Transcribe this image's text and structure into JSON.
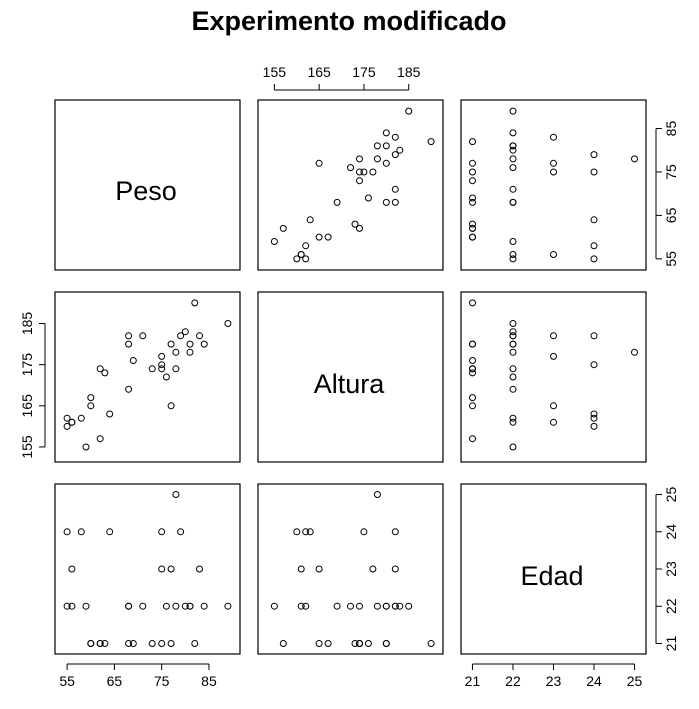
{
  "chart_data": {
    "type": "scatter",
    "subtype": "pairs",
    "title": "Experimento modificado",
    "variables": [
      "Peso",
      "Altura",
      "Edad"
    ],
    "axes": {
      "Peso": {
        "ticks": [
          55,
          65,
          75,
          85
        ],
        "range": [
          54,
          90
        ]
      },
      "Altura": {
        "ticks": [
          155,
          165,
          175,
          185
        ],
        "range": [
          153,
          191
        ]
      },
      "Edad": {
        "ticks": [
          21,
          22,
          23,
          24,
          25
        ],
        "range": [
          20.9,
          25.1
        ]
      }
    },
    "tick_labels": {
      "top_altura": [
        "155",
        "165",
        "175",
        "185"
      ],
      "right_peso": [
        "55",
        "65",
        "75",
        "85"
      ],
      "left_altura": [
        "155",
        "165",
        "175",
        "185"
      ],
      "right_edad": [
        "21",
        "22",
        "23",
        "24",
        "25"
      ],
      "bottom_peso": [
        "55",
        "65",
        "75",
        "85"
      ],
      "bottom_edad": [
        "21",
        "22",
        "23",
        "24",
        "25"
      ]
    },
    "observations": [
      {
        "Peso": 55,
        "Altura": 160,
        "Edad": 24
      },
      {
        "Peso": 55,
        "Altura": 162,
        "Edad": 22
      },
      {
        "Peso": 56,
        "Altura": 161,
        "Edad": 22
      },
      {
        "Peso": 56,
        "Altura": 161,
        "Edad": 23
      },
      {
        "Peso": 58,
        "Altura": 162,
        "Edad": 24
      },
      {
        "Peso": 59,
        "Altura": 155,
        "Edad": 22
      },
      {
        "Peso": 60,
        "Altura": 165,
        "Edad": 21
      },
      {
        "Peso": 60,
        "Altura": 167,
        "Edad": 21
      },
      {
        "Peso": 62,
        "Altura": 157,
        "Edad": 21
      },
      {
        "Peso": 62,
        "Altura": 174,
        "Edad": 21
      },
      {
        "Peso": 63,
        "Altura": 173,
        "Edad": 21
      },
      {
        "Peso": 64,
        "Altura": 163,
        "Edad": 24
      },
      {
        "Peso": 68,
        "Altura": 169,
        "Edad": 22
      },
      {
        "Peso": 68,
        "Altura": 180,
        "Edad": 21
      },
      {
        "Peso": 68,
        "Altura": 182,
        "Edad": 22
      },
      {
        "Peso": 69,
        "Altura": 176,
        "Edad": 21
      },
      {
        "Peso": 71,
        "Altura": 182,
        "Edad": 22
      },
      {
        "Peso": 73,
        "Altura": 174,
        "Edad": 21
      },
      {
        "Peso": 75,
        "Altura": 175,
        "Edad": 24
      },
      {
        "Peso": 75,
        "Altura": 177,
        "Edad": 23
      },
      {
        "Peso": 75,
        "Altura": 174,
        "Edad": 21
      },
      {
        "Peso": 76,
        "Altura": 172,
        "Edad": 22
      },
      {
        "Peso": 77,
        "Altura": 165,
        "Edad": 23
      },
      {
        "Peso": 77,
        "Altura": 180,
        "Edad": 21
      },
      {
        "Peso": 78,
        "Altura": 178,
        "Edad": 25
      },
      {
        "Peso": 78,
        "Altura": 174,
        "Edad": 22
      },
      {
        "Peso": 79,
        "Altura": 182,
        "Edad": 24
      },
      {
        "Peso": 80,
        "Altura": 183,
        "Edad": 22
      },
      {
        "Peso": 81,
        "Altura": 178,
        "Edad": 22
      },
      {
        "Peso": 81,
        "Altura": 180,
        "Edad": 22
      },
      {
        "Peso": 82,
        "Altura": 190,
        "Edad": 21
      },
      {
        "Peso": 83,
        "Altura": 182,
        "Edad": 23
      },
      {
        "Peso": 84,
        "Altura": 180,
        "Edad": 22
      },
      {
        "Peso": 89,
        "Altura": 185,
        "Edad": 22
      }
    ]
  }
}
